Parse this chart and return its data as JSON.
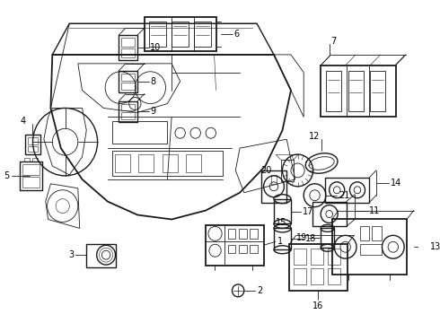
{
  "bg_color": "#ffffff",
  "fig_width": 4.9,
  "fig_height": 3.6,
  "dpi": 100,
  "line_color": "#1a1a1a",
  "line_color_light": "#555555",
  "lw_main": 1.0,
  "lw_thin": 0.6,
  "lw_thick": 1.3,
  "label_fontsize": 7.0,
  "label_color": "#000000"
}
